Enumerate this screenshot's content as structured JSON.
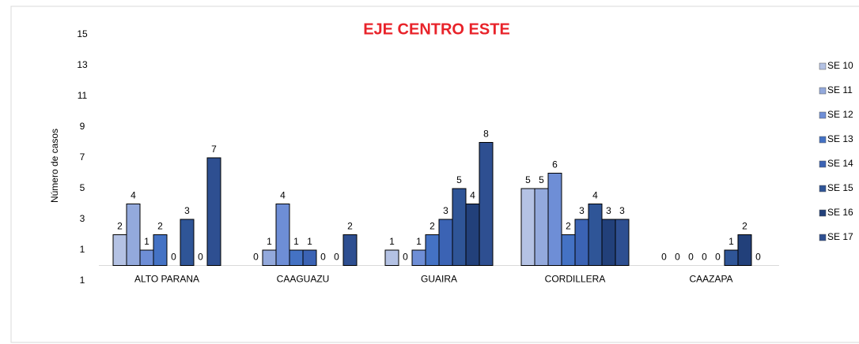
{
  "chart_data": {
    "type": "bar",
    "title": "EJE CENTRO ESTE",
    "y_label": "Número de casos",
    "categories": [
      "ALTO PARANA",
      "CAAGUAZU",
      "GUAIRA",
      "CORDILLERA",
      "CAAZAPA"
    ],
    "series": [
      {
        "name": "SE 10",
        "color": "#b4c2e4",
        "values": [
          2,
          0,
          1,
          5,
          0
        ]
      },
      {
        "name": "SE 11",
        "color": "#93a9dc",
        "values": [
          4,
          1,
          0,
          5,
          0
        ]
      },
      {
        "name": "SE 12",
        "color": "#6e8ed6",
        "values": [
          1,
          4,
          1,
          6,
          0
        ]
      },
      {
        "name": "SE 13",
        "color": "#4472c4",
        "values": [
          2,
          1,
          2,
          2,
          0
        ]
      },
      {
        "name": "SE 14",
        "color": "#3b63b4",
        "values": [
          0,
          1,
          3,
          3,
          0
        ]
      },
      {
        "name": "SE 15",
        "color": "#2f5597",
        "values": [
          3,
          0,
          5,
          4,
          1
        ]
      },
      {
        "name": "SE 16",
        "color": "#22407a",
        "values": [
          0,
          0,
          4,
          3,
          2
        ]
      },
      {
        "name": "SE 17",
        "color": "#2e4f91",
        "values": [
          7,
          2,
          8,
          3,
          0
        ]
      }
    ],
    "ylim": [
      -1,
      15
    ],
    "yticks": [
      {
        "value": -1,
        "label": "1"
      },
      1,
      3,
      5,
      7,
      9,
      11,
      13,
      15
    ]
  }
}
